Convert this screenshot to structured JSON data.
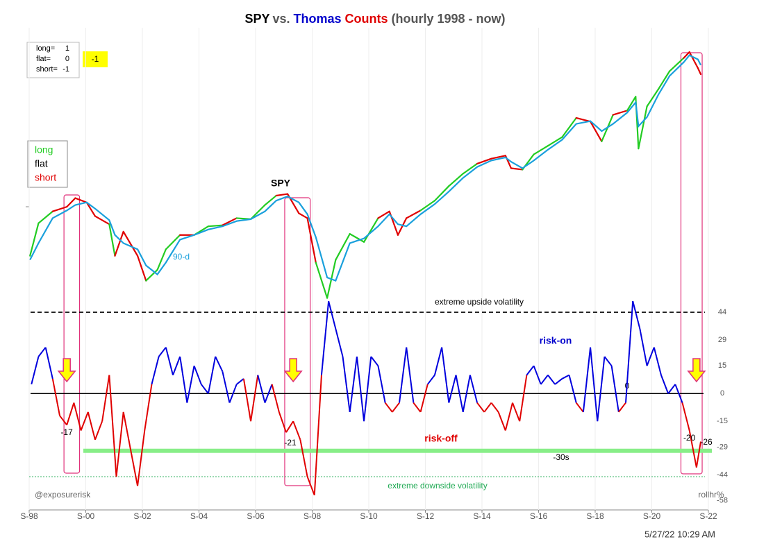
{
  "chart_data": {
    "type": "line",
    "title_parts": [
      {
        "text": "SPY",
        "color": "#000000"
      },
      {
        "text": "vs.",
        "color": "#555555"
      },
      {
        "text": "Thomas",
        "color": "#0000cc"
      },
      {
        "text": "Counts",
        "color": "#e00000"
      },
      {
        "text": "(hourly 1998 - now)",
        "color": "#555555"
      }
    ],
    "xlim": [
      1998.67,
      2022.67
    ],
    "xticks": [
      {
        "value": 1998.67,
        "label": "S-98"
      },
      {
        "value": 2000.67,
        "label": "S-00"
      },
      {
        "value": 2002.67,
        "label": "S-02"
      },
      {
        "value": 2004.67,
        "label": "S-04"
      },
      {
        "value": 2006.67,
        "label": "S-06"
      },
      {
        "value": 2008.67,
        "label": "S-08"
      },
      {
        "value": 2010.67,
        "label": "S-10"
      },
      {
        "value": 2012.67,
        "label": "S-12"
      },
      {
        "value": 2014.67,
        "label": "S-14"
      },
      {
        "value": 2016.67,
        "label": "S-16"
      },
      {
        "value": 2018.67,
        "label": "S-18"
      },
      {
        "value": 2020.67,
        "label": "S-20"
      },
      {
        "value": 2022.67,
        "label": "S-22"
      }
    ],
    "ylim": [
      12.7,
      578
    ],
    "log_y": true,
    "y2lim": [
      -63,
      198
    ],
    "y2ticks": [
      44,
      29,
      15,
      0,
      -15,
      -29,
      -44,
      -58
    ],
    "y2_label": "rollhr%",
    "grid": true,
    "series": [
      {
        "name": "SPY",
        "color": "#000000",
        "long_color": "#22cc22",
        "short_color": "#e00000",
        "x": [
          1998.7,
          1999.0,
          1999.5,
          2000.0,
          2000.3,
          2000.7,
          2001.0,
          2001.5,
          2001.7,
          2002.0,
          2002.5,
          2002.8,
          2003.2,
          2003.5,
          2004.0,
          2004.5,
          2005.0,
          2005.5,
          2006.0,
          2006.5,
          2007.0,
          2007.4,
          2007.8,
          2008.2,
          2008.5,
          2008.8,
          2009.2,
          2009.5,
          2010.0,
          2010.5,
          2011.0,
          2011.4,
          2011.7,
          2012.0,
          2012.5,
          2013.0,
          2013.5,
          2014.0,
          2014.5,
          2015.0,
          2015.5,
          2015.7,
          2016.1,
          2016.5,
          2017.0,
          2017.5,
          2018.0,
          2018.5,
          2018.9,
          2019.3,
          2019.8,
          2020.1,
          2020.2,
          2020.5,
          2020.9,
          2021.3,
          2021.8,
          2022.0,
          2022.3,
          2022.4
        ],
        "values": [
          95,
          123,
          135,
          140,
          150,
          145,
          130,
          122,
          95,
          115,
          95,
          78,
          85,
          100,
          112,
          112,
          120,
          121,
          128,
          127,
          142,
          153,
          155,
          133,
          128,
          90,
          68,
          92,
          113,
          106,
          128,
          135,
          112,
          128,
          136,
          147,
          165,
          182,
          197,
          205,
          210,
          190,
          188,
          212,
          227,
          243,
          283,
          275,
          235,
          290,
          300,
          335,
          222,
          310,
          355,
          410,
          455,
          477,
          420,
          400
        ]
      },
      {
        "name": "90-d",
        "color": "#1aa0dc",
        "x": [
          1998.7,
          1999.0,
          1999.5,
          2000.0,
          2000.3,
          2000.7,
          2001.0,
          2001.5,
          2001.7,
          2002.0,
          2002.5,
          2002.8,
          2003.2,
          2003.5,
          2004.0,
          2004.5,
          2005.0,
          2005.5,
          2006.0,
          2006.5,
          2007.0,
          2007.4,
          2007.8,
          2008.2,
          2008.5,
          2008.8,
          2009.2,
          2009.5,
          2010.0,
          2010.5,
          2011.0,
          2011.4,
          2011.7,
          2012.0,
          2012.5,
          2013.0,
          2013.5,
          2014.0,
          2014.5,
          2015.0,
          2015.5,
          2015.7,
          2016.1,
          2016.5,
          2017.0,
          2017.5,
          2018.0,
          2018.5,
          2018.9,
          2019.3,
          2019.8,
          2020.1,
          2020.2,
          2020.5,
          2020.9,
          2021.3,
          2021.8,
          2022.0,
          2022.3,
          2022.4
        ],
        "values": [
          92,
          105,
          128,
          136,
          142,
          145,
          138,
          126,
          112,
          105,
          100,
          88,
          82,
          90,
          108,
          112,
          117,
          120,
          125,
          127,
          135,
          147,
          152,
          145,
          132,
          110,
          80,
          78,
          105,
          109,
          120,
          132,
          122,
          120,
          132,
          143,
          158,
          176,
          192,
          202,
          207,
          200,
          190,
          202,
          220,
          238,
          270,
          276,
          255,
          270,
          295,
          320,
          265,
          285,
          340,
          395,
          440,
          465,
          450,
          430
        ]
      },
      {
        "name": "Thomas Counts",
        "axis": "y2",
        "color": "#0000dd",
        "negative_color": "#e00000",
        "x": [
          1998.75,
          1999,
          1999.25,
          1999.5,
          1999.75,
          2000,
          2000.25,
          2000.5,
          2000.75,
          2001,
          2001.25,
          2001.5,
          2001.75,
          2002,
          2002.25,
          2002.5,
          2002.75,
          2003,
          2003.25,
          2003.5,
          2003.75,
          2004,
          2004.25,
          2004.5,
          2004.75,
          2005,
          2005.25,
          2005.5,
          2005.75,
          2006,
          2006.25,
          2006.5,
          2006.75,
          2007,
          2007.25,
          2007.5,
          2007.75,
          2008,
          2008.25,
          2008.5,
          2008.75,
          2009,
          2009.25,
          2009.5,
          2009.75,
          2010,
          2010.25,
          2010.5,
          2010.75,
          2011,
          2011.25,
          2011.5,
          2011.75,
          2012,
          2012.25,
          2012.5,
          2012.75,
          2013,
          2013.25,
          2013.5,
          2013.75,
          2014,
          2014.25,
          2014.5,
          2014.75,
          2015,
          2015.25,
          2015.5,
          2015.75,
          2016,
          2016.25,
          2016.5,
          2016.75,
          2017,
          2017.25,
          2017.5,
          2017.75,
          2018,
          2018.25,
          2018.5,
          2018.75,
          2019,
          2019.25,
          2019.5,
          2019.75,
          2020,
          2020.25,
          2020.5,
          2020.75,
          2021,
          2021.25,
          2021.5,
          2021.75,
          2022,
          2022.25,
          2022.4
        ],
        "values": [
          5,
          20,
          25,
          8,
          -12,
          -17,
          -5,
          -20,
          -10,
          -25,
          -15,
          10,
          -45,
          -10,
          -30,
          -50,
          -20,
          5,
          20,
          25,
          10,
          20,
          -5,
          15,
          5,
          0,
          20,
          12,
          -5,
          5,
          8,
          -15,
          10,
          -5,
          5,
          -10,
          -21,
          -15,
          -25,
          -45,
          -55,
          10,
          50,
          35,
          20,
          -10,
          20,
          -15,
          20,
          15,
          -5,
          -10,
          -5,
          25,
          -5,
          -10,
          5,
          10,
          25,
          -5,
          10,
          -10,
          10,
          -5,
          -10,
          -5,
          -10,
          -20,
          -5,
          -15,
          10,
          15,
          5,
          10,
          5,
          8,
          10,
          -5,
          -10,
          25,
          -15,
          20,
          15,
          -10,
          -5,
          50,
          35,
          15,
          25,
          10,
          0,
          5,
          -5,
          -20,
          -40,
          -26
        ]
      }
    ],
    "reference_lines": [
      {
        "value": 44,
        "label": "extreme upside volatility",
        "color": "#000000",
        "style": "dashed"
      },
      {
        "value": 0,
        "label": "0",
        "color": "#000000",
        "style": "solid"
      },
      {
        "value": -31,
        "label": "-30s",
        "color": "#88ee88",
        "style": "thick"
      },
      {
        "value": -45,
        "label": "extreme downside volatility",
        "color": "#22aa55",
        "style": "dotted"
      }
    ],
    "annotations": [
      {
        "text": "SPY",
        "color": "#000000"
      },
      {
        "text": "90-d",
        "color": "#1aa0dc"
      },
      {
        "text": "risk-on",
        "color": "#0000cc"
      },
      {
        "text": "risk-off",
        "color": "#e00000"
      },
      {
        "text": "@exposurerisk",
        "color": "#666666"
      }
    ],
    "callouts": [
      {
        "x": 1999.9,
        "value": -17
      },
      {
        "x": 2007.8,
        "value": -21
      },
      {
        "x": 2021.9,
        "value": -20
      },
      {
        "x": 2022.5,
        "value": -26
      }
    ],
    "highlight_ranges": [
      [
        1999.9,
        2000.45
      ],
      [
        2007.7,
        2008.6
      ],
      [
        2021.7,
        2022.45
      ]
    ],
    "signal_arrows_x": [
      2000.0,
      2008.0,
      2022.25
    ],
    "position_key": [
      {
        "label": "long=",
        "value": 1
      },
      {
        "label": "flat=",
        "value": 0
      },
      {
        "label": "short=",
        "value": -1
      }
    ],
    "current_position": -1,
    "state_legend": [
      {
        "name": "long",
        "color": "#22cc22"
      },
      {
        "name": "flat",
        "color": "#000000"
      },
      {
        "name": "short",
        "color": "#e00000"
      }
    ],
    "timestamp": "5/27/22 10:29 AM"
  }
}
